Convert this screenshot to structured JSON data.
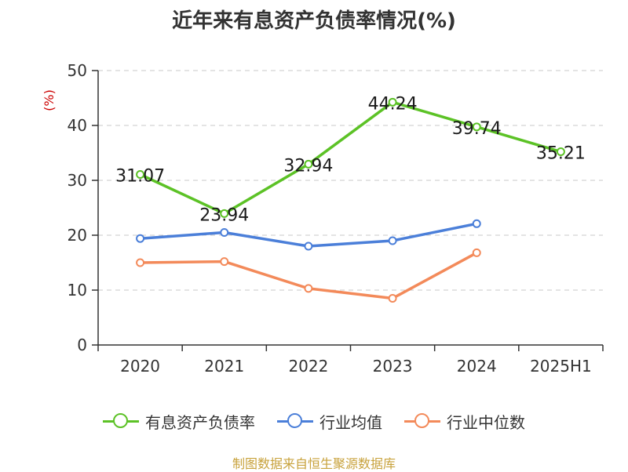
{
  "chart_data": {
    "type": "line",
    "title": "近年来有息资产负债率情况(%)",
    "ylabel": "(%)",
    "xlabel": "",
    "categories": [
      "2020",
      "2021",
      "2022",
      "2023",
      "2024",
      "2025H1"
    ],
    "ylim": [
      0,
      50
    ],
    "yticks": [
      0,
      10,
      20,
      30,
      40,
      50
    ],
    "grid": true,
    "legend_position": "bottom",
    "series": [
      {
        "name": "有息资产负债率",
        "color": "#5cc226",
        "values": [
          31.07,
          23.94,
          32.94,
          44.24,
          39.74,
          35.21
        ],
        "labels": [
          "31.07",
          "23.94",
          "32.94",
          "44.24",
          "39.74",
          "35.21"
        ]
      },
      {
        "name": "行业均值",
        "color": "#4b7fd9",
        "values": [
          19.4,
          20.5,
          18.0,
          19.0,
          22.1,
          null
        ]
      },
      {
        "name": "行业中位数",
        "color": "#f38a5a",
        "values": [
          15.0,
          15.2,
          10.3,
          8.5,
          16.8,
          null
        ]
      }
    ]
  },
  "footer": {
    "source": "制图数据来自恒生聚源数据库"
  }
}
